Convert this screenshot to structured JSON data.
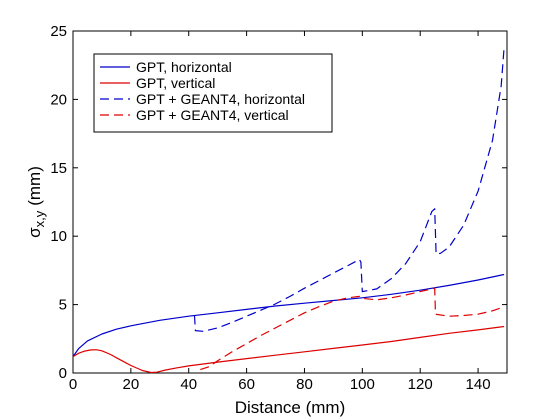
{
  "chart_data": {
    "type": "line",
    "title": "",
    "xlabel": "Distance (mm)",
    "ylabel": {
      "sigma": "σ",
      "subscript": "x,y",
      "unit": "(mm)"
    },
    "xlim": [
      0,
      150
    ],
    "ylim": [
      0,
      25
    ],
    "xticks": [
      0,
      20,
      40,
      60,
      80,
      100,
      120,
      140
    ],
    "yticks": [
      0,
      5,
      10,
      15,
      20,
      25
    ],
    "grid": false,
    "legend": {
      "position": "top-left"
    },
    "series": [
      {
        "name": "GPT, horizontal",
        "color": "#0000cc",
        "dash": "solid",
        "x": [
          0,
          2,
          5,
          10,
          15,
          20,
          30,
          40,
          50,
          60,
          70,
          80,
          90,
          100,
          110,
          120,
          130,
          140,
          149
        ],
        "y": [
          1.2,
          1.8,
          2.35,
          2.85,
          3.2,
          3.45,
          3.85,
          4.15,
          4.4,
          4.65,
          4.9,
          5.1,
          5.3,
          5.5,
          5.75,
          6.05,
          6.4,
          6.8,
          7.2
        ]
      },
      {
        "name": "GPT, vertical",
        "color": "#dd0000",
        "dash": "solid",
        "x": [
          0,
          2,
          4,
          6,
          8,
          10,
          13,
          16,
          20,
          24,
          27,
          29,
          32,
          36,
          40,
          50,
          60,
          70,
          80,
          90,
          100,
          110,
          120,
          130,
          140,
          149
        ],
        "y": [
          1.2,
          1.45,
          1.6,
          1.68,
          1.7,
          1.62,
          1.35,
          1.0,
          0.55,
          0.18,
          0.04,
          0.06,
          0.22,
          0.38,
          0.52,
          0.8,
          1.05,
          1.3,
          1.55,
          1.8,
          2.05,
          2.3,
          2.6,
          2.9,
          3.15,
          3.4
        ]
      },
      {
        "name": "GPT + GEANT4, horizontal",
        "color": "#0000cc",
        "dash": "dashed",
        "x": [
          42,
          42.3,
          45,
          50,
          55,
          60,
          65,
          70,
          75,
          80,
          85,
          90,
          95,
          99,
          99.5,
          100,
          105,
          110,
          115,
          120,
          124,
          125,
          125.5,
          127,
          130,
          135,
          140,
          145,
          148,
          149
        ],
        "y": [
          4.2,
          3.1,
          3.05,
          3.3,
          3.7,
          4.15,
          4.6,
          5.05,
          5.6,
          6.2,
          6.75,
          7.3,
          7.85,
          8.3,
          8.1,
          5.95,
          6.15,
          6.9,
          8.0,
          9.6,
          11.8,
          12.0,
          8.7,
          8.75,
          9.2,
          10.8,
          13.3,
          17.0,
          21.0,
          23.8
        ]
      },
      {
        "name": "GPT + GEANT4, vertical",
        "color": "#dd0000",
        "dash": "dashed",
        "x": [
          44,
          47,
          50,
          55,
          60,
          65,
          70,
          75,
          80,
          85,
          90,
          95,
          99,
          100,
          105,
          110,
          115,
          120,
          124,
          125,
          125.3,
          130,
          135,
          140,
          145,
          149
        ],
        "y": [
          0.25,
          0.45,
          0.9,
          1.55,
          2.15,
          2.75,
          3.3,
          3.85,
          4.4,
          4.85,
          5.25,
          5.5,
          5.6,
          5.45,
          5.35,
          5.5,
          5.7,
          5.95,
          6.15,
          6.2,
          4.3,
          4.15,
          4.2,
          4.3,
          4.55,
          4.85
        ]
      }
    ]
  }
}
